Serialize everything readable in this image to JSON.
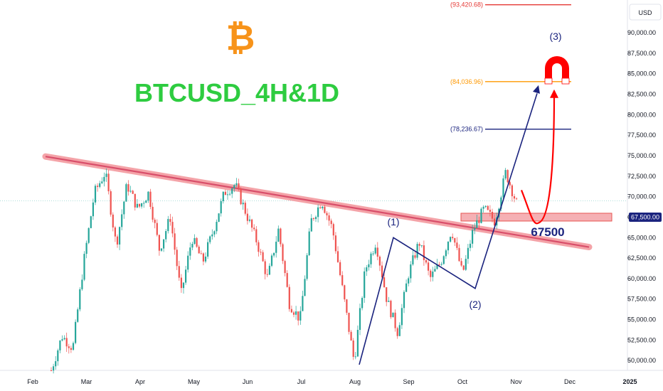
{
  "chart_data": {
    "type": "candlestick",
    "title": "BTCUSD_4H&1D",
    "currency_label": "USD",
    "x_ticks": [
      "Feb",
      "Mar",
      "Apr",
      "May",
      "Jun",
      "Jul",
      "Aug",
      "Sep",
      "Oct",
      "Nov",
      "Dec",
      "2025"
    ],
    "y_ticks": [
      "50,000.00",
      "52,500.00",
      "55,000.00",
      "57,500.00",
      "60,000.00",
      "62,500.00",
      "65,000.00",
      "67,500.00",
      "70,000.00",
      "72,500.00",
      "75,000.00",
      "77,500.00",
      "80,000.00",
      "82,500.00",
      "85,000.00",
      "87,500.00",
      "90,000.00"
    ],
    "ylim": [
      48800,
      94000
    ],
    "current_price_label": "67,500.00",
    "key_level": {
      "value": 67500,
      "label": "67500"
    },
    "target_levels": [
      {
        "value": 93420.68,
        "label": "(93,420.68)",
        "color": "#e53935"
      },
      {
        "value": 84036.96,
        "label": "(84,036.96)",
        "color": "#ff9800"
      },
      {
        "value": 78236.67,
        "label": "(78,236.67)",
        "color": "#1a237e"
      }
    ],
    "wave_labels": [
      "(1)",
      "(2)",
      "(3)"
    ],
    "series": [
      {
        "values": [
          48800,
          53000,
          51500,
          62000,
          70500,
          73000,
          64000,
          71500,
          68500,
          70500,
          63500,
          67500,
          58000,
          65000,
          62000,
          66000,
          70500,
          71500,
          68000,
          64500,
          60000,
          66000,
          57000,
          55000,
          67000,
          69500,
          66000,
          58000,
          49800,
          61000,
          64500,
          57500,
          53500,
          60500,
          64500,
          60000,
          62000,
          66000,
          60500,
          66000,
          68500,
          67000,
          73000,
          69200
        ]
      }
    ],
    "colors": {
      "up": "#26a69a",
      "down": "#ef5350",
      "trendline": "#e57373",
      "wave": "#1a237e",
      "arrow": "#ff0000",
      "title": "#2ecc40",
      "bitcoin": "#f7931a"
    }
  }
}
